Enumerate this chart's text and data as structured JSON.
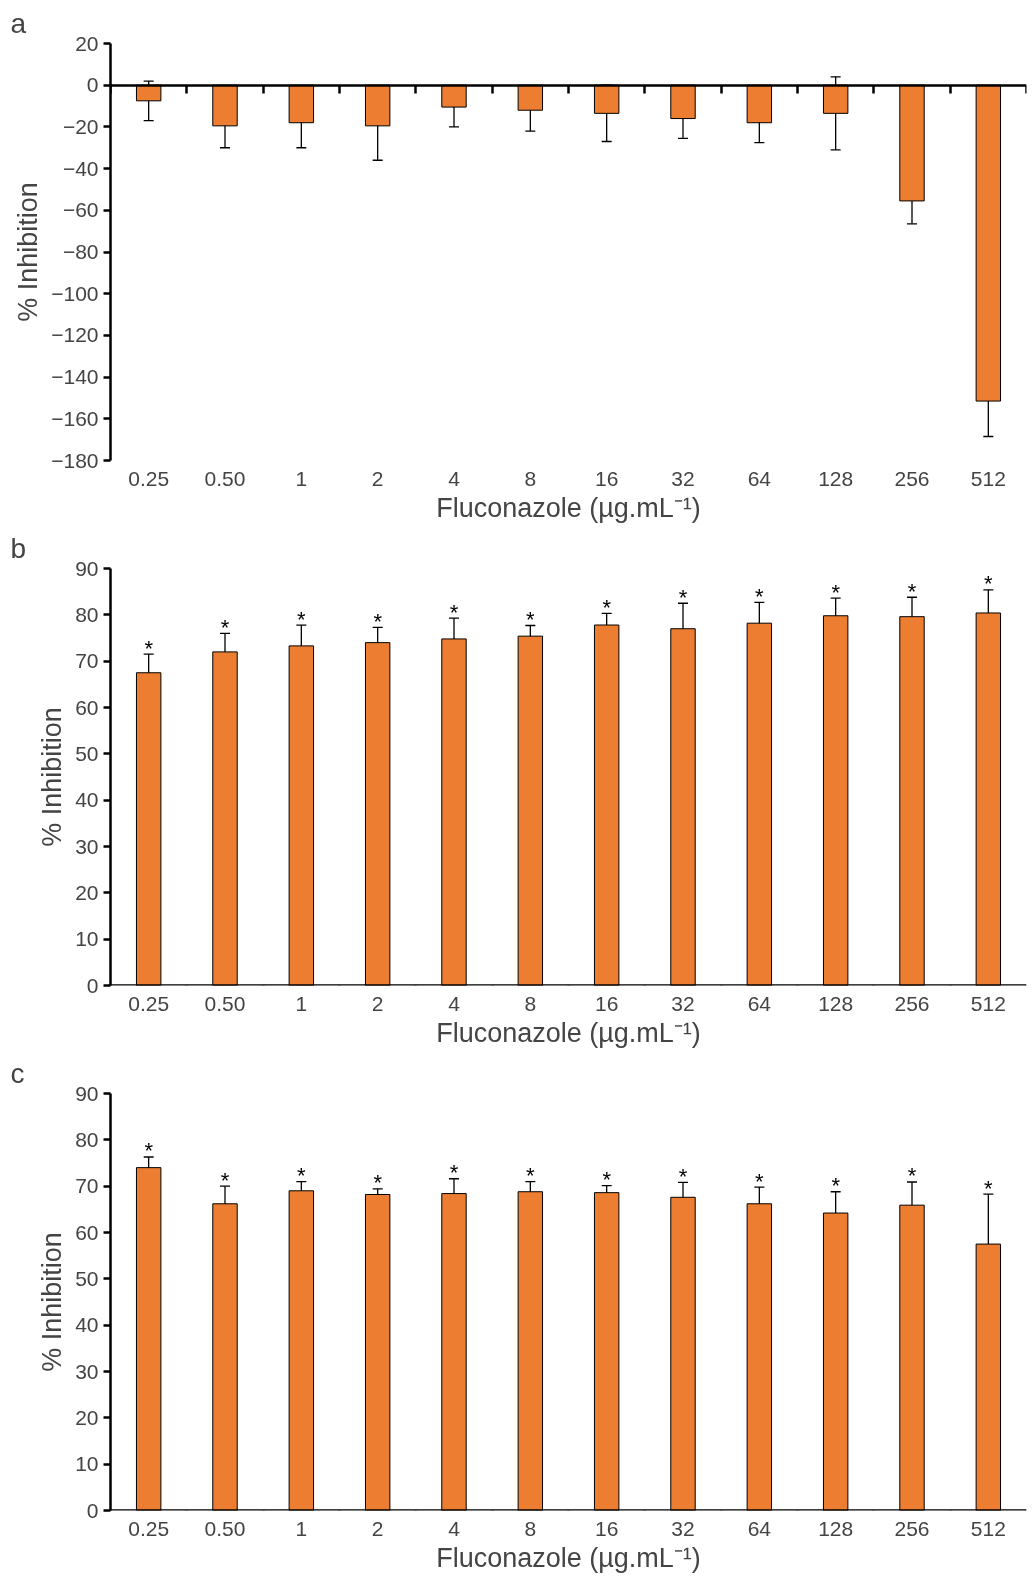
{
  "chart_data": [
    {
      "type": "bar",
      "title": "a",
      "xlabel": "Fluconazole (µg.mL⁻¹)",
      "ylabel": "% Inhibition",
      "categories": [
        "0.25",
        "0.50",
        "1",
        "2",
        "4",
        "8",
        "16",
        "32",
        "64",
        "128",
        "256",
        "512"
      ],
      "values": [
        -7.5,
        -19.5,
        -18,
        -19.5,
        -10.5,
        -12,
        -13.5,
        -16,
        -18,
        -13.5,
        -55.5,
        -151.5
      ],
      "errors": [
        9.5,
        10.5,
        12,
        16.5,
        9.5,
        10,
        13.5,
        9.5,
        9.5,
        17.5,
        11,
        17
      ],
      "color": "#ed7d31",
      "ylim": [
        -180,
        20
      ],
      "yticks": [
        -180,
        -160,
        -140,
        -120,
        -100,
        -80,
        -60,
        -40,
        -20,
        0,
        20
      ]
    },
    {
      "type": "bar",
      "title": "b",
      "xlabel": "Fluconazole (µg.mL⁻¹)",
      "ylabel": "% Inhibition",
      "categories": [
        "0.25",
        "0.50",
        "1",
        "2",
        "4",
        "8",
        "16",
        "32",
        "64",
        "128",
        "256",
        "512"
      ],
      "values": [
        67.5,
        72,
        73.3,
        74,
        74.8,
        75.4,
        77.8,
        77,
        78.2,
        79.8,
        79.6,
        80.4
      ],
      "errors": [
        4,
        4,
        4.5,
        3.3,
        4.5,
        2.3,
        2.5,
        5.5,
        4.5,
        3.8,
        4.2,
        5
      ],
      "color": "#ed7d31",
      "ylim": [
        0,
        90
      ],
      "yticks": [
        0,
        10,
        20,
        30,
        40,
        50,
        60,
        70,
        80,
        90
      ],
      "grid": false,
      "annotations": [
        {
          "text": "*",
          "x": "0.25",
          "y": 71.5
        },
        {
          "text": "*",
          "x": "0.50",
          "y": 76
        },
        {
          "text": "*",
          "x": "1",
          "y": 77.8
        },
        {
          "text": "*",
          "x": "2",
          "y": 77.3
        },
        {
          "text": "*",
          "x": "4",
          "y": 79.3
        },
        {
          "text": "*",
          "x": "8",
          "y": 77.7
        },
        {
          "text": "*",
          "x": "16",
          "y": 80.3
        },
        {
          "text": "*",
          "x": "32",
          "y": 82.5
        },
        {
          "text": "*",
          "x": "64",
          "y": 82.7
        },
        {
          "text": "*",
          "x": "128",
          "y": 83.6
        },
        {
          "text": "*",
          "x": "256",
          "y": 83.8
        },
        {
          "text": "*",
          "x": "512",
          "y": 85.4
        }
      ]
    },
    {
      "type": "bar",
      "title": "c",
      "xlabel": "Fluconazole (µg.mL⁻¹)",
      "ylabel": "% Inhibition",
      "categories": [
        "0.25",
        "0.50",
        "1",
        "2",
        "4",
        "8",
        "16",
        "32",
        "64",
        "128",
        "256",
        "512"
      ],
      "values": [
        74,
        66.2,
        69,
        68.2,
        68.4,
        68.8,
        68.6,
        67.6,
        66.2,
        64.2,
        65.9,
        57.5
      ],
      "errors": [
        2.3,
        3.8,
        2,
        1.2,
        3.2,
        2.2,
        1.5,
        3.2,
        3.6,
        4.6,
        5,
        10.8
      ],
      "color": "#ed7d31",
      "ylim": [
        0,
        90
      ],
      "yticks": [
        0,
        10,
        20,
        30,
        40,
        50,
        60,
        70,
        80,
        90
      ],
      "grid": false,
      "annotations": [
        {
          "text": "*",
          "x": "0.25",
          "y": 76.3
        },
        {
          "text": "*",
          "x": "0.50",
          "y": 70
        },
        {
          "text": "*",
          "x": "1",
          "y": 71
        },
        {
          "text": "*",
          "x": "2",
          "y": 69.4
        },
        {
          "text": "*",
          "x": "4",
          "y": 71.6
        },
        {
          "text": "*",
          "x": "8",
          "y": 71
        },
        {
          "text": "*",
          "x": "16",
          "y": 70.1
        },
        {
          "text": "*",
          "x": "32",
          "y": 70.8
        },
        {
          "text": "*",
          "x": "64",
          "y": 69.8
        },
        {
          "text": "*",
          "x": "128",
          "y": 68.8
        },
        {
          "text": "*",
          "x": "256",
          "y": 70.9
        },
        {
          "text": "*",
          "x": "512",
          "y": 68.3
        }
      ]
    }
  ]
}
